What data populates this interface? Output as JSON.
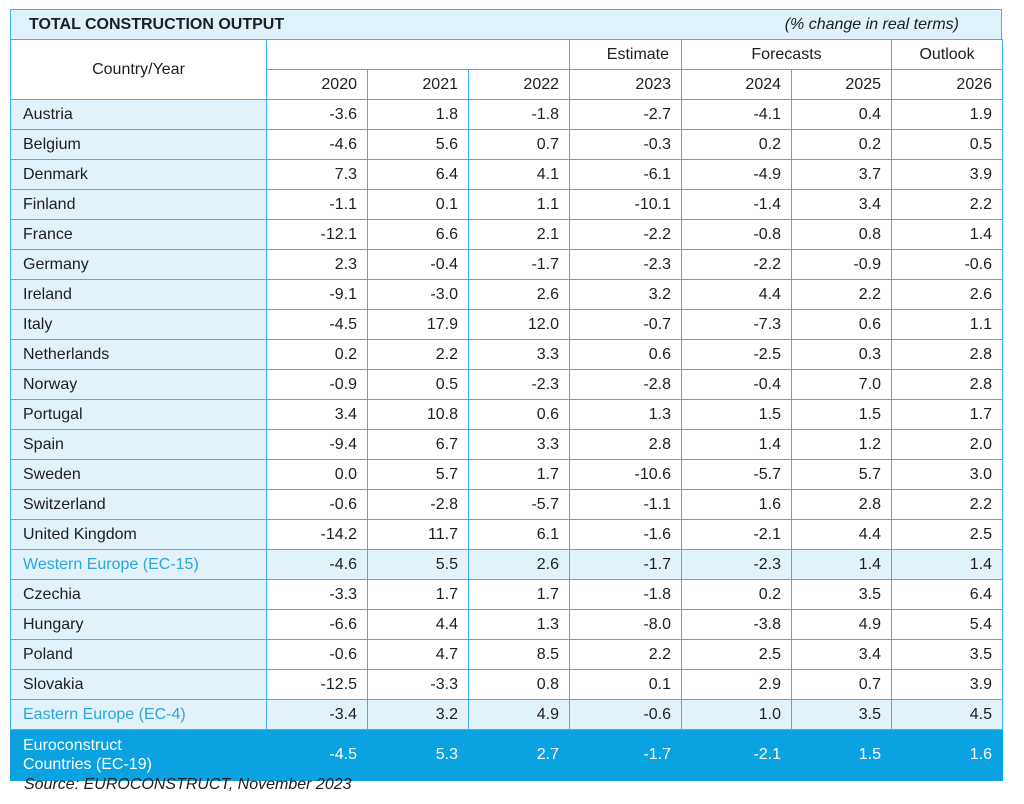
{
  "title": "TOTAL CONSTRUCTION OUTPUT",
  "unit_note": "(% change in real terms)",
  "header": {
    "country_year": "Country/Year",
    "estimate": "Estimate",
    "forecasts": "Forecasts",
    "outlook": "Outlook",
    "years": [
      "2020",
      "2021",
      "2022",
      "2023",
      "2024",
      "2025",
      "2026"
    ]
  },
  "rows": [
    {
      "name": "Austria",
      "values": [
        "-3.6",
        "1.8",
        "-1.8",
        "-2.7",
        "-4.1",
        "0.4",
        "1.9"
      ]
    },
    {
      "name": "Belgium",
      "values": [
        "-4.6",
        "5.6",
        "0.7",
        "-0.3",
        "0.2",
        "0.2",
        "0.5"
      ]
    },
    {
      "name": "Denmark",
      "values": [
        "7.3",
        "6.4",
        "4.1",
        "-6.1",
        "-4.9",
        "3.7",
        "3.9"
      ]
    },
    {
      "name": "Finland",
      "values": [
        "-1.1",
        "0.1",
        "1.1",
        "-10.1",
        "-1.4",
        "3.4",
        "2.2"
      ]
    },
    {
      "name": "France",
      "values": [
        "-12.1",
        "6.6",
        "2.1",
        "-2.2",
        "-0.8",
        "0.8",
        "1.4"
      ]
    },
    {
      "name": "Germany",
      "values": [
        "2.3",
        "-0.4",
        "-1.7",
        "-2.3",
        "-2.2",
        "-0.9",
        "-0.6"
      ]
    },
    {
      "name": "Ireland",
      "values": [
        "-9.1",
        "-3.0",
        "2.6",
        "3.2",
        "4.4",
        "2.2",
        "2.6"
      ]
    },
    {
      "name": "Italy",
      "values": [
        "-4.5",
        "17.9",
        "12.0",
        "-0.7",
        "-7.3",
        "0.6",
        "1.1"
      ]
    },
    {
      "name": "Netherlands",
      "values": [
        "0.2",
        "2.2",
        "3.3",
        "0.6",
        "-2.5",
        "0.3",
        "2.8"
      ]
    },
    {
      "name": "Norway",
      "values": [
        "-0.9",
        "0.5",
        "-2.3",
        "-2.8",
        "-0.4",
        "7.0",
        "2.8"
      ]
    },
    {
      "name": "Portugal",
      "values": [
        "3.4",
        "10.8",
        "0.6",
        "1.3",
        "1.5",
        "1.5",
        "1.7"
      ]
    },
    {
      "name": "Spain",
      "values": [
        "-9.4",
        "6.7",
        "3.3",
        "2.8",
        "1.4",
        "1.2",
        "2.0"
      ]
    },
    {
      "name": "Sweden",
      "values": [
        "0.0",
        "5.7",
        "1.7",
        "-10.6",
        "-5.7",
        "5.7",
        "3.0"
      ]
    },
    {
      "name": "Switzerland",
      "values": [
        "-0.6",
        "-2.8",
        "-5.7",
        "-1.1",
        "1.6",
        "2.8",
        "2.2"
      ]
    },
    {
      "name": "United Kingdom",
      "values": [
        "-14.2",
        "11.7",
        "6.1",
        "-1.6",
        "-2.1",
        "4.4",
        "2.5"
      ]
    },
    {
      "name": "Western Europe (EC-15)",
      "values": [
        "-4.6",
        "5.5",
        "2.6",
        "-1.7",
        "-2.3",
        "1.4",
        "1.4"
      ],
      "aggregate": true
    },
    {
      "name": "Czechia",
      "values": [
        "-3.3",
        "1.7",
        "1.7",
        "-1.8",
        "0.2",
        "3.5",
        "6.4"
      ]
    },
    {
      "name": "Hungary",
      "values": [
        "-6.6",
        "4.4",
        "1.3",
        "-8.0",
        "-3.8",
        "4.9",
        "5.4"
      ]
    },
    {
      "name": "Poland",
      "values": [
        "-0.6",
        "4.7",
        "8.5",
        "2.2",
        "2.5",
        "3.4",
        "3.5"
      ]
    },
    {
      "name": "Slovakia",
      "values": [
        "-12.5",
        "-3.3",
        "0.8",
        "0.1",
        "2.9",
        "0.7",
        "3.9"
      ]
    },
    {
      "name": "Eastern Europe (EC-4)",
      "values": [
        "-3.4",
        "3.2",
        "4.9",
        "-0.6",
        "1.0",
        "3.5",
        "4.5"
      ],
      "aggregate": true
    }
  ],
  "total": {
    "name_line1": "Euroconstruct",
    "name_line2": "Countries (EC-19)",
    "values": [
      "-4.5",
      "5.3",
      "2.7",
      "-1.7",
      "-2.1",
      "1.5",
      "1.6"
    ]
  },
  "source": "Source: EUROCONSTRUCT, November 2023",
  "colors": {
    "accent": "#0aa2e0",
    "border": "#3fb2e6",
    "shade": "#e2f2fb"
  }
}
